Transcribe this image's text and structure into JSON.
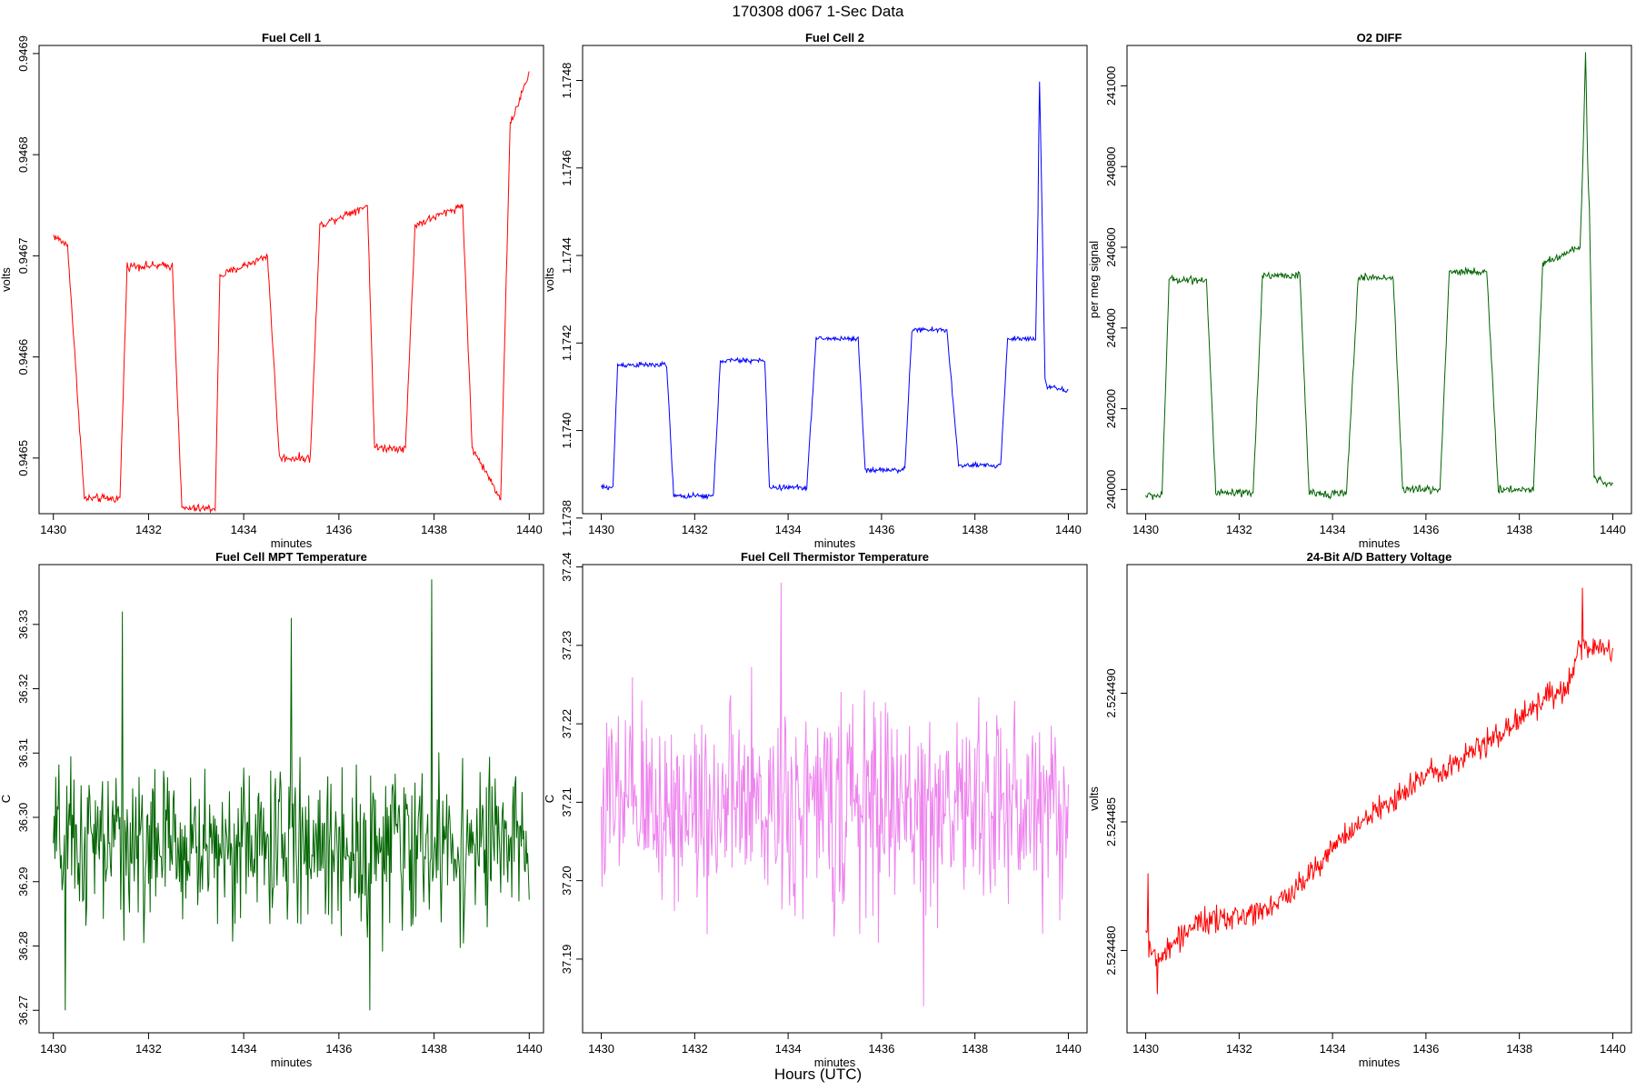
{
  "header": {
    "title": "170308   d067   1-Sec Data"
  },
  "footer": {
    "xlabel": "Hours (UTC)"
  },
  "chart_data": [
    {
      "type": "line",
      "title": "Fuel Cell 1",
      "xlabel": "minutes",
      "ylabel": "volts",
      "xlim": [
        1429.7,
        1440.3
      ],
      "ylim": [
        0.946445,
        0.946908
      ],
      "xticks": [
        1430,
        1432,
        1434,
        1436,
        1438,
        1440
      ],
      "yticks": [
        0.9465,
        0.9466,
        0.9467,
        0.9468,
        0.9469
      ],
      "ytick_labels": [
        "0.9465",
        "0.9466",
        "0.9467",
        "0.9468",
        "0.9469"
      ],
      "color": "#ff0000",
      "profile": {
        "x": [
          1430,
          1430.3,
          1430.65,
          1431.4,
          1431.55,
          1432.5,
          1432.7,
          1433.4,
          1433.5,
          1434.5,
          1434.75,
          1435.4,
          1435.6,
          1436.6,
          1436.75,
          1437.4,
          1437.6,
          1438.6,
          1438.8,
          1439.4,
          1439.6,
          1440
        ],
        "y": [
          0.94672,
          0.94671,
          0.94646,
          0.94646,
          0.94669,
          0.94669,
          0.94645,
          0.94645,
          0.94668,
          0.9467,
          0.9465,
          0.9465,
          0.94673,
          0.94675,
          0.94651,
          0.94651,
          0.94673,
          0.94675,
          0.94651,
          0.94646,
          0.94683,
          0.94688
        ]
      },
      "noise": 4e-06
    },
    {
      "type": "line",
      "title": "Fuel Cell 2",
      "xlabel": "minutes",
      "ylabel": "volts",
      "xlim": [
        1429.6,
        1440.4
      ],
      "ylim": [
        1.17381,
        1.17488
      ],
      "xticks": [
        1430,
        1432,
        1434,
        1436,
        1438,
        1440
      ],
      "yticks": [
        1.1738,
        1.174,
        1.1742,
        1.1744,
        1.1746,
        1.1748
      ],
      "ytick_labels": [
        "1.1738",
        "1.1740",
        "1.1742",
        "1.1744",
        "1.1746",
        "1.1748"
      ],
      "color": "#0000ff",
      "profile": {
        "x": [
          1430,
          1430.25,
          1430.35,
          1431.4,
          1431.55,
          1432.4,
          1432.55,
          1433.5,
          1433.6,
          1434.4,
          1434.6,
          1435.5,
          1435.65,
          1436.5,
          1436.65,
          1437.4,
          1437.65,
          1438.55,
          1438.7,
          1439.3,
          1439.35,
          1439.38,
          1439.42,
          1439.5,
          1439.55,
          1440
        ],
        "y": [
          1.17387,
          1.17387,
          1.17415,
          1.17415,
          1.17385,
          1.17385,
          1.17416,
          1.17416,
          1.17387,
          1.17387,
          1.17421,
          1.17421,
          1.17391,
          1.17391,
          1.17423,
          1.17423,
          1.17392,
          1.17392,
          1.17421,
          1.17421,
          1.1745,
          1.17482,
          1.1746,
          1.17412,
          1.1741,
          1.17409
        ]
      },
      "noise": 6e-06
    },
    {
      "type": "line",
      "title": "O2 DIFF",
      "xlabel": "minutes",
      "ylabel": "per meg signal",
      "xlim": [
        1429.6,
        1440.4
      ],
      "ylim": [
        239940,
        241100
      ],
      "xticks": [
        1430,
        1432,
        1434,
        1436,
        1438,
        1440
      ],
      "yticks": [
        240000,
        240200,
        240400,
        240600,
        240800,
        241000
      ],
      "ytick_labels": [
        "240000",
        "240200",
        "240400",
        "240600",
        "240800",
        "241000"
      ],
      "color": "#006400",
      "profile": {
        "x": [
          1430,
          1430.35,
          1430.5,
          1431.3,
          1431.5,
          1432.3,
          1432.5,
          1433.3,
          1433.5,
          1434.3,
          1434.55,
          1435.3,
          1435.5,
          1436.3,
          1436.5,
          1437.3,
          1437.55,
          1438.3,
          1438.5,
          1439.3,
          1439.38,
          1439.42,
          1439.46,
          1439.5,
          1439.6,
          1440
        ],
        "y": [
          239985,
          239985,
          240520,
          240520,
          239990,
          239990,
          240530,
          240530,
          239990,
          239990,
          240525,
          240525,
          240000,
          240000,
          240540,
          240540,
          240000,
          240000,
          240560,
          240600,
          240900,
          241100,
          240800,
          240700,
          240030,
          240010
        ]
      },
      "noise": 10
    },
    {
      "type": "line",
      "title": "Fuel Cell MPT Temperature",
      "xlabel": "minutes",
      "ylabel": "C",
      "xlim": [
        1429.7,
        1440.3
      ],
      "ylim": [
        36.2665,
        36.3393
      ],
      "xticks": [
        1430,
        1432,
        1434,
        1436,
        1438,
        1440
      ],
      "yticks": [
        36.27,
        36.28,
        36.29,
        36.3,
        36.31,
        36.32,
        36.33
      ],
      "ytick_labels": [
        "36.27",
        "36.28",
        "36.29",
        "36.30",
        "36.31",
        "36.32",
        "36.33"
      ],
      "color": "#006400",
      "profile": {
        "x": [
          1430,
          1440
        ],
        "y": [
          36.2955,
          36.2955
        ]
      },
      "noise": 0.012,
      "spikes": [
        [
          1431.45,
          36.332
        ],
        [
          1435.0,
          36.331
        ],
        [
          1437.95,
          36.337
        ],
        [
          1430.25,
          36.27
        ],
        [
          1436.65,
          36.27
        ]
      ]
    },
    {
      "type": "line",
      "title": "Fuel Cell Thermistor Temperature",
      "xlabel": "minutes",
      "ylabel": "C",
      "xlim": [
        1429.6,
        1440.4
      ],
      "ylim": [
        37.1806,
        37.2403
      ],
      "xticks": [
        1430,
        1432,
        1434,
        1436,
        1438,
        1440
      ],
      "yticks": [
        37.19,
        37.2,
        37.21,
        37.22,
        37.23,
        37.24
      ],
      "ytick_labels": [
        "37.19",
        "37.20",
        "37.21",
        "37.22",
        "37.23",
        "37.24"
      ],
      "color": "#ee82ee",
      "profile": {
        "x": [
          1430,
          1440
        ],
        "y": [
          37.2095,
          37.2095
        ]
      },
      "noise": 0.013,
      "spikes": [
        [
          1433.85,
          37.238
        ],
        [
          1436.9,
          37.184
        ]
      ]
    },
    {
      "type": "line",
      "title": "24-Bit A/D Battery Voltage",
      "xlabel": "minutes",
      "ylabel": "volts",
      "xlim": [
        1429.6,
        1440.4
      ],
      "ylim": [
        2.5244768,
        2.524495
      ],
      "xticks": [
        1430,
        1432,
        1434,
        1436,
        1438,
        1440
      ],
      "yticks": [
        2.52448,
        2.524485,
        2.52449
      ],
      "ytick_labels": [
        "2.524480",
        "2.524485",
        "2.524490"
      ],
      "color": "#ff0000",
      "profile": {
        "x": [
          1430,
          1430.2,
          1431,
          1432,
          1433,
          1434,
          1435,
          1436,
          1437,
          1438,
          1438.5,
          1439,
          1439.3,
          1440
        ],
        "y": [
          2.5244808,
          2.5244795,
          2.524481,
          2.5244813,
          2.524482,
          2.524484,
          2.5244855,
          2.5244868,
          2.5244877,
          2.524489,
          2.5244898,
          2.52449,
          2.5244918,
          2.5244917
        ]
      },
      "noise": 5e-07,
      "spikes": [
        [
          1430.05,
          2.524483
        ],
        [
          1430.25,
          2.5244783
        ],
        [
          1439.35,
          2.5244941
        ]
      ]
    }
  ]
}
